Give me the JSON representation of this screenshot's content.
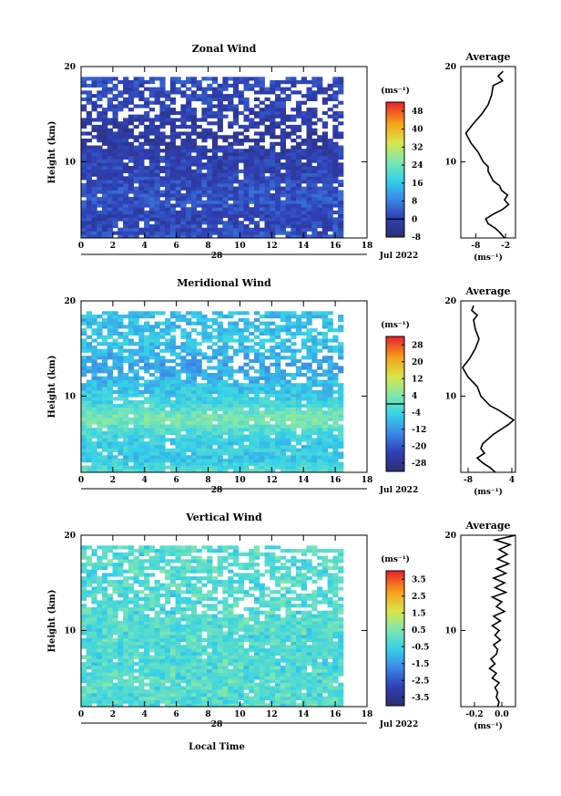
{
  "figure": {
    "date_label": "Jul 2022",
    "day_label": "28",
    "xlabel_bottom": "Local Time",
    "time_ticks": [
      "0",
      "2",
      "4",
      "6",
      "8",
      "10",
      "12",
      "14",
      "16",
      "18"
    ],
    "time_range": [
      0,
      18
    ],
    "data_end_hour": 16.2
  },
  "chart_data": [
    {
      "type": "heatmap",
      "title": "Zonal Wind",
      "ylabel": "Height (km)",
      "unit_label": "(ms⁻¹)",
      "yticks": [
        "10",
        "20"
      ],
      "ylim": [
        2,
        20
      ],
      "colorbar": {
        "levels": [
          "-8",
          "0",
          "8",
          "16",
          "24",
          "32",
          "40",
          "48"
        ],
        "range": [
          -8,
          52
        ],
        "zero_line": 0
      },
      "profile": {
        "title": "Average",
        "xlabel": "(ms⁻¹)",
        "xticks": [
          "-8",
          "-2"
        ],
        "xlim": [
          -11,
          0
        ],
        "heights": [
          19.5,
          19,
          18.5,
          18,
          17,
          16,
          15,
          14,
          13,
          12.5,
          12,
          11,
          10,
          9.5,
          9,
          8,
          7.5,
          7,
          6.5,
          6,
          5.5,
          5,
          4.5,
          4,
          3.5,
          3,
          2.5,
          2
        ],
        "values": [
          -2.5,
          -3.5,
          -2.6,
          -4.5,
          -4.8,
          -5.5,
          -6.8,
          -8.5,
          -10,
          -9.5,
          -9,
          -7.5,
          -6.5,
          -5.5,
          -5.5,
          -4.5,
          -3.2,
          -2.8,
          -1.6,
          -2.2,
          -1.4,
          -2.6,
          -4.5,
          -6,
          -5.5,
          -4,
          -3,
          -2.2
        ]
      }
    },
    {
      "type": "heatmap",
      "title": "Meridional Wind",
      "ylabel": "Height (km)",
      "unit_label": "(ms⁻¹)",
      "yticks": [
        "10",
        "20"
      ],
      "ylim": [
        2,
        20
      ],
      "colorbar": {
        "levels": [
          "-28",
          "-20",
          "-12",
          "-4",
          "4",
          "12",
          "20",
          "28"
        ],
        "range": [
          -32,
          32
        ],
        "zero_line": 0
      },
      "profile": {
        "title": "Average",
        "xlabel": "(ms⁻¹)",
        "xticks": [
          "-8",
          "4"
        ],
        "xlim": [
          -10,
          5
        ],
        "heights": [
          19.5,
          19,
          18.5,
          18,
          17,
          16,
          15,
          14,
          13,
          12,
          11,
          10,
          9,
          8.5,
          8,
          7.5,
          7,
          6.5,
          6,
          5.5,
          5,
          4.5,
          4,
          3.5,
          3,
          2.5,
          2
        ],
        "values": [
          -6.5,
          -7,
          -5.5,
          -6.5,
          -6,
          -5,
          -6,
          -7.5,
          -9.5,
          -8,
          -5.5,
          -4.5,
          -2,
          0.5,
          2.5,
          4.5,
          3,
          1,
          -1,
          -2.5,
          -4,
          -4.5,
          -3.5,
          -5.5,
          -4,
          -2,
          -0.5
        ]
      }
    },
    {
      "type": "heatmap",
      "title": "Vertical Wind",
      "ylabel": "Height (km)",
      "unit_label": "(ms⁻¹)",
      "yticks": [
        "10",
        "20"
      ],
      "ylim": [
        2,
        20
      ],
      "colorbar": {
        "levels": [
          "-3.5",
          "-2.5",
          "-1.5",
          "-0.5",
          "0.5",
          "1.5",
          "2.5",
          "3.5"
        ],
        "range": [
          -4,
          4
        ],
        "zero_line": null
      },
      "profile": {
        "title": "Average",
        "xlabel": "(ms⁻¹)",
        "xticks": [
          "-0.2",
          "0.0"
        ],
        "xlim": [
          -0.3,
          0.1
        ],
        "heights": [
          20,
          19.5,
          19,
          18.5,
          18,
          17.5,
          17,
          16.5,
          16,
          15.5,
          15,
          14.5,
          14,
          13.5,
          13,
          12.5,
          12,
          11.5,
          11,
          10.5,
          10,
          9.5,
          9,
          8.5,
          8,
          7.5,
          7,
          6.5,
          6,
          5.5,
          5,
          4.5,
          4,
          3.5,
          3,
          2.5,
          2
        ],
        "values": [
          0.1,
          -0.05,
          0.06,
          -0.02,
          0.04,
          -0.03,
          0.05,
          -0.04,
          0.03,
          -0.06,
          0.02,
          -0.05,
          0.03,
          -0.07,
          0.0,
          -0.04,
          0.02,
          -0.06,
          -0.01,
          -0.07,
          -0.02,
          -0.05,
          -0.01,
          -0.06,
          -0.03,
          -0.04,
          -0.08,
          -0.05,
          -0.09,
          -0.04,
          -0.07,
          -0.02,
          -0.05,
          -0.03,
          -0.04,
          -0.02,
          -0.03
        ]
      }
    }
  ]
}
